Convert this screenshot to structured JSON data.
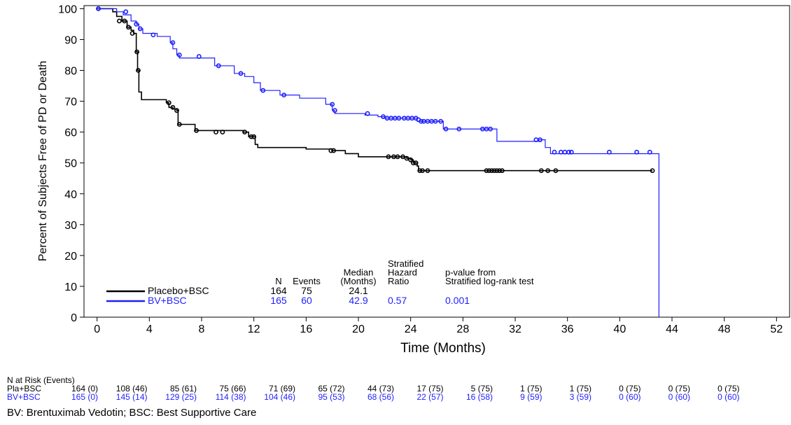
{
  "chart_data": {
    "type": "line",
    "subtype": "kaplan-meier step",
    "title": "",
    "xlabel": "Time (Months)",
    "ylabel": "Percent of Subjects Free of PD or Death",
    "xlim": [
      -1,
      53
    ],
    "ylim": [
      0,
      101
    ],
    "xticks": [
      0,
      4,
      8,
      12,
      16,
      20,
      24,
      28,
      32,
      36,
      40,
      44,
      48,
      52
    ],
    "yticks": [
      0,
      10,
      20,
      30,
      40,
      50,
      60,
      70,
      80,
      90,
      100
    ],
    "grid": false,
    "legend_position": "bottom-left",
    "series": [
      {
        "name": "Placebo+BSC",
        "color": "#000000",
        "steps": [
          [
            0,
            100
          ],
          [
            1.2,
            99
          ],
          [
            1.5,
            97.5
          ],
          [
            1.9,
            96
          ],
          [
            2.3,
            94
          ],
          [
            2.6,
            93
          ],
          [
            2.8,
            92
          ],
          [
            3.0,
            86
          ],
          [
            3.1,
            80
          ],
          [
            3.2,
            73
          ],
          [
            3.4,
            70.5
          ],
          [
            5.3,
            69.5
          ],
          [
            5.5,
            68
          ],
          [
            5.8,
            67.5
          ],
          [
            6.1,
            67
          ],
          [
            6.2,
            62.5
          ],
          [
            7.5,
            60.5
          ],
          [
            11.2,
            60
          ],
          [
            11.6,
            58.5
          ],
          [
            12.1,
            56
          ],
          [
            12.3,
            55
          ],
          [
            16.0,
            54.5
          ],
          [
            18.0,
            54
          ],
          [
            19.0,
            53
          ],
          [
            20.0,
            52
          ],
          [
            22.0,
            52
          ],
          [
            23.7,
            51.5
          ],
          [
            24.0,
            51
          ],
          [
            24.2,
            50
          ],
          [
            24.5,
            49
          ],
          [
            24.6,
            47.5
          ],
          [
            42.5,
            47.5
          ]
        ],
        "censors": [
          [
            0.1,
            100
          ],
          [
            1.7,
            96
          ],
          [
            2.1,
            96
          ],
          [
            2.4,
            94
          ],
          [
            2.7,
            92
          ],
          [
            3.05,
            86
          ],
          [
            3.15,
            80
          ],
          [
            5.5,
            69.5
          ],
          [
            5.8,
            68
          ],
          [
            6.1,
            67
          ],
          [
            6.3,
            62.5
          ],
          [
            7.6,
            60.5
          ],
          [
            9.1,
            60
          ],
          [
            9.6,
            60
          ],
          [
            11.3,
            60
          ],
          [
            11.8,
            58.5
          ],
          [
            12.0,
            58.5
          ],
          [
            17.9,
            54
          ],
          [
            18.1,
            54
          ],
          [
            22.3,
            52
          ],
          [
            22.7,
            52
          ],
          [
            23.0,
            52
          ],
          [
            23.4,
            52
          ],
          [
            23.7,
            51.5
          ],
          [
            24.0,
            51
          ],
          [
            24.2,
            50
          ],
          [
            24.4,
            50
          ],
          [
            24.7,
            47.5
          ],
          [
            24.9,
            47.5
          ],
          [
            25.3,
            47.5
          ],
          [
            29.8,
            47.5
          ],
          [
            30.0,
            47.5
          ],
          [
            30.2,
            47.5
          ],
          [
            30.4,
            47.5
          ],
          [
            30.6,
            47.5
          ],
          [
            30.8,
            47.5
          ],
          [
            31.0,
            47.5
          ],
          [
            34.0,
            47.5
          ],
          [
            34.5,
            47.5
          ],
          [
            35.1,
            47.5
          ],
          [
            42.5,
            47.5
          ]
        ]
      },
      {
        "name": "BV+BSC",
        "color": "#1f1fff",
        "steps": [
          [
            0,
            100
          ],
          [
            1.5,
            99
          ],
          [
            2.0,
            98
          ],
          [
            2.6,
            96
          ],
          [
            3.0,
            95
          ],
          [
            3.2,
            93.5
          ],
          [
            3.5,
            92
          ],
          [
            4.6,
            91
          ],
          [
            5.6,
            89
          ],
          [
            5.8,
            87
          ],
          [
            6.1,
            85
          ],
          [
            6.3,
            84
          ],
          [
            9.0,
            81.5
          ],
          [
            10.5,
            79
          ],
          [
            11.3,
            78
          ],
          [
            12.0,
            76
          ],
          [
            12.5,
            73.5
          ],
          [
            14.0,
            72
          ],
          [
            15.5,
            71
          ],
          [
            17.5,
            69
          ],
          [
            18.0,
            67
          ],
          [
            18.2,
            66
          ],
          [
            20.5,
            65.5
          ],
          [
            21.5,
            65
          ],
          [
            22.0,
            64.5
          ],
          [
            24.5,
            63.5
          ],
          [
            26.0,
            63.5
          ],
          [
            26.5,
            61
          ],
          [
            29.5,
            61
          ],
          [
            30.5,
            61
          ],
          [
            30.6,
            57
          ],
          [
            33.8,
            57.5
          ],
          [
            34.3,
            55
          ],
          [
            34.7,
            53
          ],
          [
            42.5,
            53
          ],
          [
            43.0,
            53
          ],
          [
            43.0,
            0
          ]
        ],
        "censors": [
          [
            0.1,
            100
          ],
          [
            2.2,
            99
          ],
          [
            3.0,
            95
          ],
          [
            3.3,
            93.5
          ],
          [
            4.3,
            91.5
          ],
          [
            5.8,
            89
          ],
          [
            6.3,
            85
          ],
          [
            7.8,
            84.5
          ],
          [
            9.3,
            81.5
          ],
          [
            11.0,
            79
          ],
          [
            12.7,
            73.5
          ],
          [
            14.3,
            72
          ],
          [
            18.0,
            69
          ],
          [
            18.2,
            67
          ],
          [
            20.7,
            66
          ],
          [
            21.9,
            65
          ],
          [
            22.2,
            64.5
          ],
          [
            22.5,
            64.5
          ],
          [
            22.8,
            64.5
          ],
          [
            23.1,
            64.5
          ],
          [
            23.5,
            64.5
          ],
          [
            23.8,
            64.5
          ],
          [
            24.1,
            64.5
          ],
          [
            24.4,
            64.5
          ],
          [
            24.6,
            64
          ],
          [
            24.8,
            63.5
          ],
          [
            25.0,
            63.5
          ],
          [
            25.3,
            63.5
          ],
          [
            25.6,
            63.5
          ],
          [
            25.9,
            63.5
          ],
          [
            26.3,
            63.5
          ],
          [
            26.7,
            61
          ],
          [
            27.7,
            61
          ],
          [
            29.5,
            61
          ],
          [
            29.8,
            61
          ],
          [
            30.1,
            61
          ],
          [
            33.6,
            57.5
          ],
          [
            33.9,
            57.5
          ],
          [
            35.0,
            53.5
          ],
          [
            35.5,
            53.5
          ],
          [
            35.8,
            53.5
          ],
          [
            36.1,
            53.5
          ],
          [
            36.3,
            53.5
          ],
          [
            39.2,
            53.5
          ],
          [
            41.3,
            53.5
          ],
          [
            42.3,
            53.5
          ]
        ]
      }
    ],
    "legend_table": {
      "headers": [
        {
          "key": "n",
          "lines": [
            "N"
          ]
        },
        {
          "key": "events",
          "lines": [
            "Events"
          ]
        },
        {
          "key": "median",
          "lines": [
            "Median",
            "(Months)"
          ]
        },
        {
          "key": "hr",
          "lines": [
            "Stratified",
            "Hazard",
            "Ratio"
          ]
        },
        {
          "key": "p",
          "lines": [
            "p-value from",
            "Stratified log-rank test"
          ]
        }
      ],
      "rows": [
        {
          "label": "Placebo+BSC",
          "n": "164",
          "events": "75",
          "median": "24.1",
          "hr": "",
          "p": ""
        },
        {
          "label": "BV+BSC",
          "n": "165",
          "events": "60",
          "median": "42.9",
          "hr": "0.57",
          "p": "0.001"
        }
      ]
    }
  },
  "risk_table": {
    "title": "N at Risk (Events)",
    "rows": [
      {
        "label": "Pla+BSC",
        "color": "#000000",
        "values": [
          "164 (0)",
          "108 (46)",
          "85 (61)",
          "75 (66)",
          "71 (69)",
          "65 (72)",
          "44 (73)",
          "17 (75)",
          "5 (75)",
          "1 (75)",
          "1 (75)",
          "0 (75)",
          "0 (75)",
          "0 (75)"
        ]
      },
      {
        "label": "BV+BSC",
        "color": "#1f1fff",
        "values": [
          "165 (0)",
          "145 (14)",
          "129 (25)",
          "114 (38)",
          "104 (46)",
          "95 (53)",
          "68 (56)",
          "22 (57)",
          "16 (58)",
          "9 (59)",
          "3 (59)",
          "0 (60)",
          "0 (60)",
          "0 (60)"
        ]
      }
    ]
  },
  "footnote": "BV: Brentuximab Vedotin; BSC: Best Supportive Care"
}
